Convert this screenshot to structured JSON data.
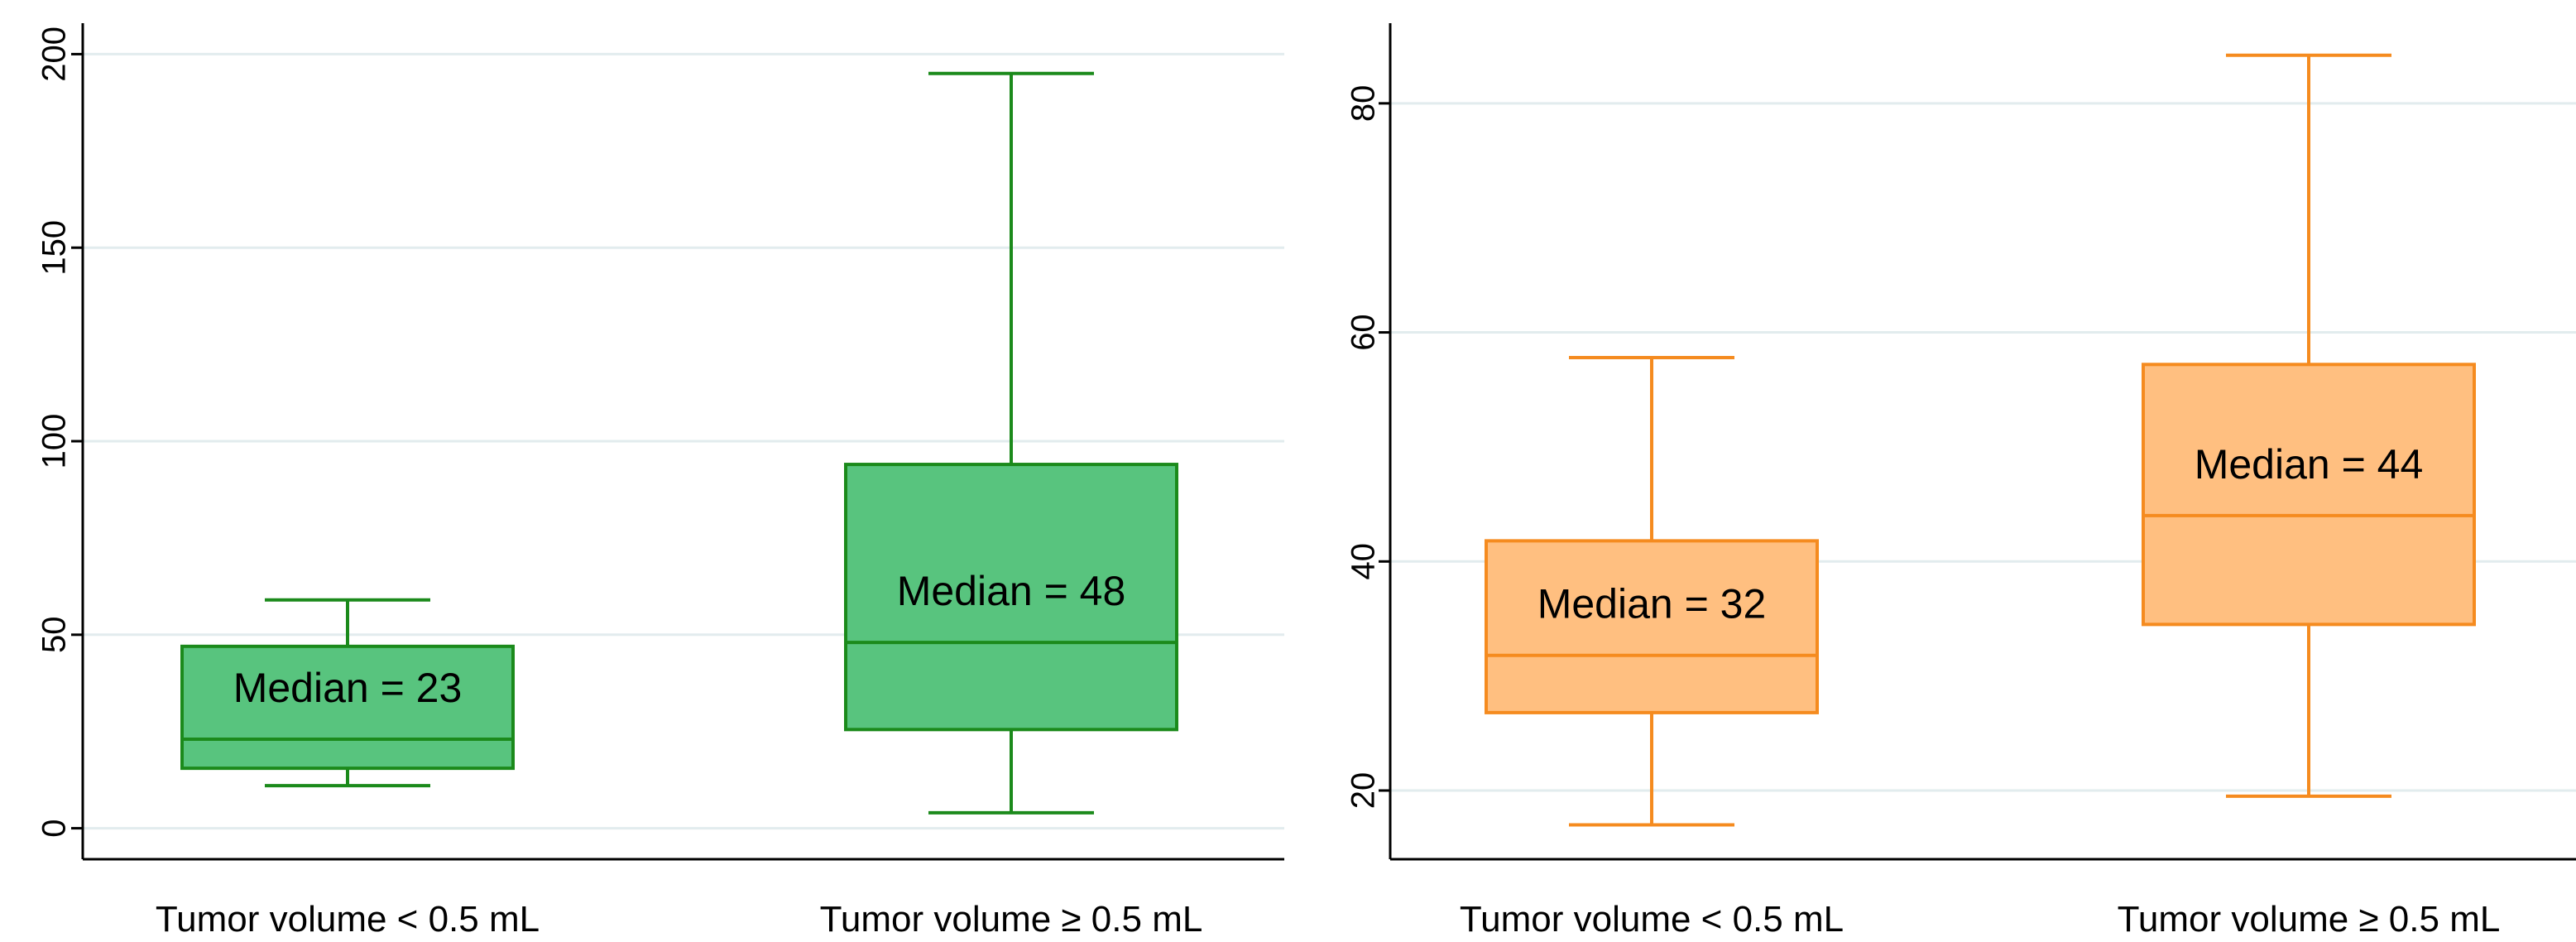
{
  "chart_data": [
    {
      "type": "box",
      "panel": "left",
      "title": "",
      "xlabel": "",
      "ylabel": "",
      "ylim": [
        -8,
        208
      ],
      "yticks": [
        0,
        50,
        100,
        150,
        200
      ],
      "grid": true,
      "legend": "none",
      "color": "#1b8a1b",
      "fill": "#58c47e",
      "categories": [
        "Tumor volume < 0.5  mL",
        "Tumor volume ≥ 0.5 mL"
      ],
      "boxes": [
        {
          "min": 11,
          "q1": 15.5,
          "median": 23,
          "q3": 47,
          "max": 59,
          "label": "Median = 23"
        },
        {
          "min": 4,
          "q1": 25.5,
          "median": 48,
          "q3": 94,
          "max": 195,
          "label": "Median = 48"
        }
      ]
    },
    {
      "type": "box",
      "panel": "right",
      "title": "",
      "xlabel": "",
      "ylabel": "",
      "ylim": [
        14,
        87
      ],
      "yticks": [
        20,
        40,
        60,
        80
      ],
      "grid": true,
      "legend": "none",
      "color": "#f58b1f",
      "fill": "#ffbf80",
      "categories": [
        "Tumor volume < 0.5  mL",
        "Tumor volume ≥ 0.5 mL"
      ],
      "boxes": [
        {
          "min": 17,
          "q1": 26.8,
          "median": 31.8,
          "q3": 41.8,
          "max": 57.8,
          "label": "Median = 32"
        },
        {
          "min": 19.5,
          "q1": 34.5,
          "median": 44,
          "q3": 57.2,
          "max": 84.2,
          "label": "Median = 44"
        }
      ]
    }
  ]
}
